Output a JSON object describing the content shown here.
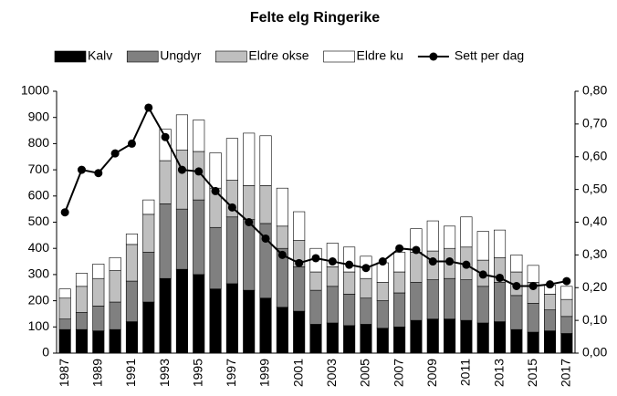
{
  "chart_data": {
    "type": "bar-line",
    "title": "Felte elg Ringerike",
    "categories": [
      "1987",
      null,
      "1989",
      null,
      "1991",
      null,
      "1993",
      null,
      "1995",
      null,
      "1997",
      null,
      "1999",
      null,
      "2001",
      null,
      "2003",
      null,
      "2005",
      null,
      "2007",
      null,
      "2009",
      null,
      "2011",
      null,
      "2013",
      null,
      "2015",
      null,
      "2017"
    ],
    "series": [
      {
        "name": "Kalv",
        "color": "#000000",
        "values": [
          90,
          90,
          85,
          90,
          120,
          195,
          285,
          320,
          300,
          245,
          265,
          240,
          210,
          175,
          160,
          110,
          115,
          105,
          110,
          95,
          100,
          125,
          130,
          130,
          125,
          115,
          120,
          90,
          80,
          85,
          75
        ]
      },
      {
        "name": "Ungdyr",
        "color": "#808080",
        "values": [
          40,
          65,
          95,
          105,
          155,
          190,
          285,
          230,
          285,
          235,
          255,
          270,
          285,
          225,
          170,
          130,
          140,
          120,
          100,
          105,
          130,
          145,
          150,
          155,
          155,
          140,
          150,
          130,
          110,
          80,
          65
        ]
      },
      {
        "name": "Eldre okse",
        "color": "#bfbfbf",
        "values": [
          80,
          100,
          105,
          120,
          140,
          145,
          165,
          225,
          185,
          150,
          140,
          130,
          145,
          85,
          100,
          70,
          75,
          85,
          75,
          70,
          80,
          115,
          110,
          115,
          125,
          100,
          95,
          90,
          80,
          60,
          65
        ]
      },
      {
        "name": "Eldre ku",
        "color": "#ffffff",
        "values": [
          35,
          50,
          55,
          50,
          40,
          55,
          120,
          135,
          120,
          135,
          160,
          200,
          190,
          145,
          110,
          90,
          90,
          95,
          85,
          75,
          75,
          90,
          115,
          85,
          115,
          110,
          105,
          65,
          65,
          35,
          50
        ]
      },
      {
        "name": "Sett per dag",
        "color": "#000000",
        "axis": "y2",
        "values": [
          0.43,
          0.56,
          0.55,
          0.61,
          0.64,
          0.75,
          0.66,
          0.56,
          0.555,
          0.495,
          0.445,
          0.4,
          0.35,
          0.3,
          0.275,
          0.29,
          0.28,
          0.27,
          0.26,
          0.28,
          0.32,
          0.315,
          0.28,
          0.28,
          0.27,
          0.24,
          0.23,
          0.205,
          0.205,
          0.21,
          0.22
        ]
      }
    ],
    "ylim": [
      0,
      1000
    ],
    "yticks": [
      0,
      100,
      200,
      300,
      400,
      500,
      600,
      700,
      800,
      900,
      1000
    ],
    "y2lim": [
      0,
      0.8
    ],
    "y2ticks": [
      {
        "value": 0,
        "label": "0,00"
      },
      {
        "value": 0.1,
        "label": "0,10"
      },
      {
        "value": 0.2,
        "label": "0,20"
      },
      {
        "value": 0.3,
        "label": "0,30"
      },
      {
        "value": 0.4,
        "label": "0,40"
      },
      {
        "value": 0.5,
        "label": "0,50"
      },
      {
        "value": 0.6,
        "label": "0,60"
      },
      {
        "value": 0.7,
        "label": "0,70"
      },
      {
        "value": 0.8,
        "label": "0,80"
      }
    ],
    "legend": "top"
  }
}
